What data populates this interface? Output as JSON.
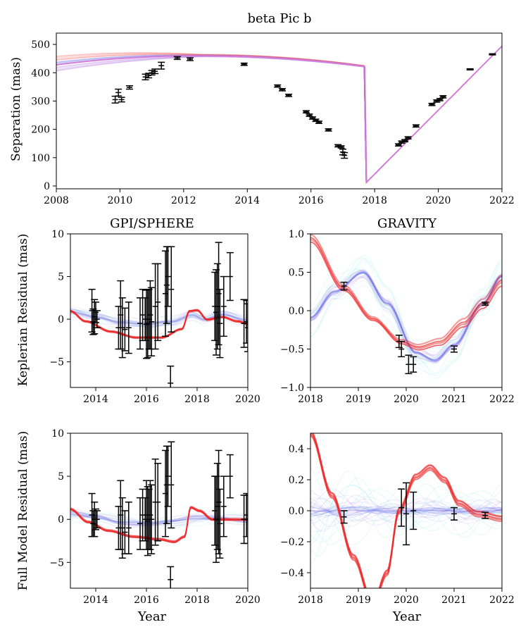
{
  "chart_data": [
    {
      "id": "sep",
      "type": "scatter",
      "title": "beta Pic b",
      "xlabel": "",
      "ylabel": "Separation (mas)",
      "xlim": [
        2008,
        2022
      ],
      "ylim": [
        -10,
        540
      ],
      "xticks": [
        2008,
        2010,
        2012,
        2014,
        2016,
        2018,
        2020,
        2022
      ],
      "yticks": [
        0,
        100,
        200,
        300,
        400,
        500
      ],
      "xtick_labels": [
        "2008",
        "2010",
        "2012",
        "2014",
        "2016",
        "2018",
        "2020",
        "2022"
      ],
      "ytick_labels": [
        "0",
        "100",
        "200",
        "300",
        "400",
        "500"
      ],
      "model_series": [
        "red",
        "blue",
        "violet"
      ],
      "points": [
        [
          2009.85,
          305,
          12
        ],
        [
          2009.95,
          330,
          12
        ],
        [
          2010.05,
          305,
          8
        ],
        [
          2010.3,
          348,
          6
        ],
        [
          2010.8,
          385,
          10
        ],
        [
          2010.9,
          390,
          8
        ],
        [
          2011.0,
          400,
          8
        ],
        [
          2011.1,
          405,
          8
        ],
        [
          2011.3,
          425,
          12
        ],
        [
          2011.8,
          452,
          5
        ],
        [
          2012.2,
          448,
          5
        ],
        [
          2013.9,
          430,
          4
        ],
        [
          2014.95,
          353,
          4
        ],
        [
          2015.1,
          340,
          4
        ],
        [
          2015.3,
          320,
          4
        ],
        [
          2015.85,
          262,
          4
        ],
        [
          2015.95,
          250,
          4
        ],
        [
          2016.05,
          240,
          4
        ],
        [
          2016.15,
          232,
          4
        ],
        [
          2016.25,
          225,
          4
        ],
        [
          2016.55,
          198,
          4
        ],
        [
          2016.85,
          142,
          4
        ],
        [
          2016.95,
          138,
          4
        ],
        [
          2017.0,
          120,
          10
        ],
        [
          2017.05,
          108,
          10
        ],
        [
          2018.75,
          145,
          4
        ],
        [
          2018.85,
          155,
          4
        ],
        [
          2018.95,
          160,
          4
        ],
        [
          2019.05,
          170,
          4
        ],
        [
          2019.3,
          212,
          4
        ],
        [
          2019.8,
          288,
          4
        ],
        [
          2019.95,
          300,
          4
        ],
        [
          2020.05,
          305,
          4
        ],
        [
          2020.15,
          315,
          4
        ],
        [
          2021.0,
          412,
          2
        ],
        [
          2021.7,
          465,
          2
        ]
      ]
    },
    {
      "id": "gpi_kep",
      "type": "scatter",
      "title": "GPI/SPHERE",
      "xlabel": "",
      "ylabel": "Keplerian Residual (mas)",
      "xlim": [
        2013,
        2020
      ],
      "ylim": [
        -8,
        10
      ],
      "xticks": [
        2014,
        2016,
        2018,
        2020
      ],
      "yticks": [
        -5,
        0,
        5,
        10
      ],
      "xtick_labels": [
        "2014",
        "2016",
        "2018",
        "2020"
      ],
      "ytick_labels": [
        "−5",
        "0",
        "5",
        "10"
      ],
      "model_series": [
        "red",
        "blue",
        "cyan",
        "violet"
      ],
      "points": [
        [
          2013.85,
          1.0,
          2.5
        ],
        [
          2013.95,
          0.3,
          2.0
        ],
        [
          2013.9,
          -0.3,
          1.5
        ],
        [
          2014.0,
          0.8,
          1.2
        ],
        [
          2014.05,
          0.0,
          1.0
        ],
        [
          2014.9,
          -1.0,
          2.5
        ],
        [
          2014.98,
          0.5,
          4.0
        ],
        [
          2015.05,
          -1.0,
          3.5
        ],
        [
          2015.15,
          -1.2,
          2.5
        ],
        [
          2015.3,
          -1.0,
          3.0
        ],
        [
          2015.75,
          -0.5,
          3.0
        ],
        [
          2015.85,
          0.5,
          3.0
        ],
        [
          2015.95,
          0.0,
          2.5
        ],
        [
          2016.0,
          -0.6,
          4.0
        ],
        [
          2016.05,
          -0.5,
          4.0
        ],
        [
          2016.1,
          0.0,
          3.5
        ],
        [
          2016.15,
          0.5,
          4.0
        ],
        [
          2016.2,
          -0.3,
          4.0
        ],
        [
          2016.35,
          1.5,
          5.0
        ],
        [
          2016.45,
          2.0,
          4.5
        ],
        [
          2016.75,
          3.0,
          5.0
        ],
        [
          2016.8,
          4.0,
          4.5
        ],
        [
          2016.85,
          5.0,
          3.5
        ],
        [
          2016.95,
          -7.5,
          2.0
        ],
        [
          2016.98,
          3.5,
          5.0
        ],
        [
          2018.7,
          1.5,
          4.0
        ],
        [
          2018.75,
          0.8,
          5.0
        ],
        [
          2018.8,
          1.5,
          5.0
        ],
        [
          2018.85,
          3.0,
          6.0
        ],
        [
          2018.9,
          -0.5,
          4.0
        ],
        [
          2019.05,
          1.5,
          3.5
        ],
        [
          2019.3,
          5.0,
          2.8
        ],
        [
          2019.85,
          -0.5,
          2.8
        ],
        [
          2019.95,
          -0.3,
          2.5
        ],
        [
          2020.0,
          -1.0,
          2.8
        ]
      ]
    },
    {
      "id": "grav_kep",
      "type": "scatter",
      "title": "GRAVITY",
      "xlabel": "",
      "ylabel": "",
      "xlim": [
        2018,
        2022
      ],
      "ylim": [
        -1.0,
        1.0
      ],
      "xticks": [
        2018,
        2019,
        2020,
        2021,
        2022
      ],
      "yticks": [
        -1.0,
        -0.5,
        0.0,
        0.5,
        1.0
      ],
      "xtick_labels": [
        "2018",
        "2019",
        "2020",
        "2021",
        "2022"
      ],
      "ytick_labels": [
        "−1.0",
        "−0.5",
        "0.0",
        "0.5",
        "1.0"
      ],
      "model_series": [
        "red",
        "blue",
        "cyan",
        "violet"
      ],
      "points": [
        [
          2018.7,
          0.32,
          0.05
        ],
        [
          2019.85,
          -0.4,
          0.08
        ],
        [
          2019.9,
          -0.5,
          0.1
        ],
        [
          2020.05,
          -0.7,
          0.12
        ],
        [
          2020.15,
          -0.7,
          0.1
        ],
        [
          2021.0,
          -0.5,
          0.04
        ],
        [
          2021.65,
          0.09,
          0.02
        ]
      ]
    },
    {
      "id": "gpi_full",
      "type": "scatter",
      "title": "",
      "xlabel": "Year",
      "ylabel": "Full Model Residual (mas)",
      "xlim": [
        2013,
        2020
      ],
      "ylim": [
        -8,
        10
      ],
      "xticks": [
        2014,
        2016,
        2018,
        2020
      ],
      "yticks": [
        -5,
        0,
        5,
        10
      ],
      "xtick_labels": [
        "2014",
        "2016",
        "2018",
        "2020"
      ],
      "ytick_labels": [
        "−5",
        "0",
        "5",
        "10"
      ],
      "model_series": [
        "red",
        "blue",
        "cyan",
        "violet"
      ],
      "points": [
        [
          2013.85,
          0.5,
          2.5
        ],
        [
          2013.95,
          0.0,
          2.0
        ],
        [
          2013.9,
          -0.5,
          1.5
        ],
        [
          2014.0,
          0.0,
          1.2
        ],
        [
          2014.05,
          0.0,
          1.0
        ],
        [
          2014.9,
          -1.0,
          2.5
        ],
        [
          2014.98,
          0.5,
          4.0
        ],
        [
          2015.05,
          -1.0,
          3.5
        ],
        [
          2015.15,
          -1.5,
          2.5
        ],
        [
          2015.3,
          -1.0,
          3.0
        ],
        [
          2015.75,
          -0.5,
          3.0
        ],
        [
          2015.85,
          0.5,
          3.0
        ],
        [
          2015.95,
          0.0,
          2.5
        ],
        [
          2016.0,
          0.5,
          4.0
        ],
        [
          2016.05,
          -0.2,
          4.0
        ],
        [
          2016.1,
          0.0,
          3.5
        ],
        [
          2016.15,
          0.5,
          4.0
        ],
        [
          2016.2,
          0.0,
          4.0
        ],
        [
          2016.35,
          2.0,
          5.0
        ],
        [
          2016.45,
          2.0,
          4.5
        ],
        [
          2016.75,
          3.0,
          5.0
        ],
        [
          2016.8,
          4.0,
          4.5
        ],
        [
          2016.85,
          5.0,
          3.5
        ],
        [
          2016.95,
          -7.0,
          1.5
        ],
        [
          2016.98,
          4.0,
          5.0
        ],
        [
          2018.7,
          1.0,
          4.0
        ],
        [
          2018.75,
          0.0,
          5.0
        ],
        [
          2018.8,
          1.5,
          5.0
        ],
        [
          2018.85,
          2.0,
          6.0
        ],
        [
          2018.9,
          -0.5,
          4.0
        ],
        [
          2019.05,
          1.5,
          3.5
        ],
        [
          2019.3,
          5.0,
          2.5
        ],
        [
          2019.85,
          0.0,
          2.8
        ],
        [
          2019.95,
          0.5,
          2.5
        ],
        [
          2020.0,
          0.0,
          2.8
        ]
      ]
    },
    {
      "id": "grav_full",
      "type": "scatter",
      "title": "",
      "xlabel": "Year",
      "ylabel": "",
      "xlim": [
        2018,
        2022
      ],
      "ylim": [
        -0.5,
        0.5
      ],
      "xticks": [
        2018,
        2019,
        2020,
        2021,
        2022
      ],
      "yticks": [
        -0.4,
        -0.2,
        0.0,
        0.2,
        0.4
      ],
      "xtick_labels": [
        "2018",
        "2019",
        "2020",
        "2021",
        "2022"
      ],
      "ytick_labels": [
        "−0.4",
        "−0.2",
        "0.0",
        "0.2",
        "0.4"
      ],
      "model_series": [
        "red",
        "blue",
        "cyan",
        "violet"
      ],
      "points": [
        [
          2018.7,
          -0.04,
          0.04
        ],
        [
          2019.9,
          0.02,
          0.12
        ],
        [
          2020.0,
          -0.02,
          0.2
        ],
        [
          2020.15,
          0.0,
          0.12
        ],
        [
          2021.0,
          -0.02,
          0.04
        ],
        [
          2021.65,
          -0.03,
          0.02
        ]
      ]
    }
  ],
  "colors": {
    "red": "#ee2222",
    "blue": "#4a52e8",
    "cyan": "#7fe6e6",
    "violet": "#b070e0",
    "magenta": "#d878d8",
    "errorbar": "#000000"
  }
}
